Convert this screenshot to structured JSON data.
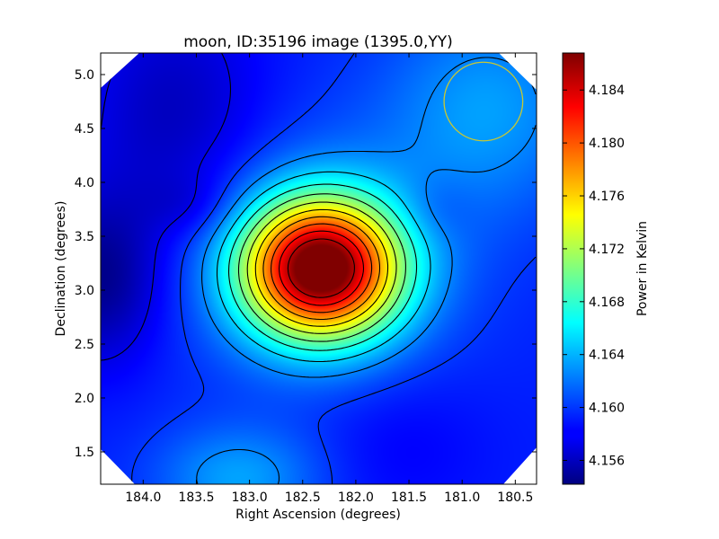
{
  "chart_data": {
    "type": "heatmap",
    "title": "moon, ID:35196 image (1395.0,YY)",
    "xlabel": "Right Ascension (degrees)",
    "ylabel": "Declination (degrees)",
    "xlim": [
      184.4,
      180.3
    ],
    "ylim": [
      1.2,
      5.2
    ],
    "xticks": [
      "184.0",
      "183.5",
      "183.0",
      "182.5",
      "182.0",
      "181.5",
      "181.0",
      "180.5"
    ],
    "yticks": [
      "1.5",
      "2.0",
      "2.5",
      "3.0",
      "3.5",
      "4.0",
      "4.5",
      "5.0"
    ],
    "colorbar": {
      "label": "Power in Kelvin",
      "range": [
        4.1542,
        4.1868
      ],
      "ticks": [
        "4.156",
        "4.160",
        "4.164",
        "4.168",
        "4.172",
        "4.176",
        "4.180",
        "4.184"
      ],
      "colormap": "jet"
    },
    "colormap_stops": [
      "#00007f",
      "#0000ff",
      "#00ffff",
      "#ffff00",
      "#ff0000",
      "#7f0000"
    ],
    "peak": {
      "ra": 182.33,
      "dec": 3.2,
      "value": 4.1868
    },
    "beam_circle": {
      "ra": 180.8,
      "dec": 4.75,
      "radius_deg": 0.37,
      "color": "#c8c832"
    },
    "contour_color": "#000000"
  }
}
